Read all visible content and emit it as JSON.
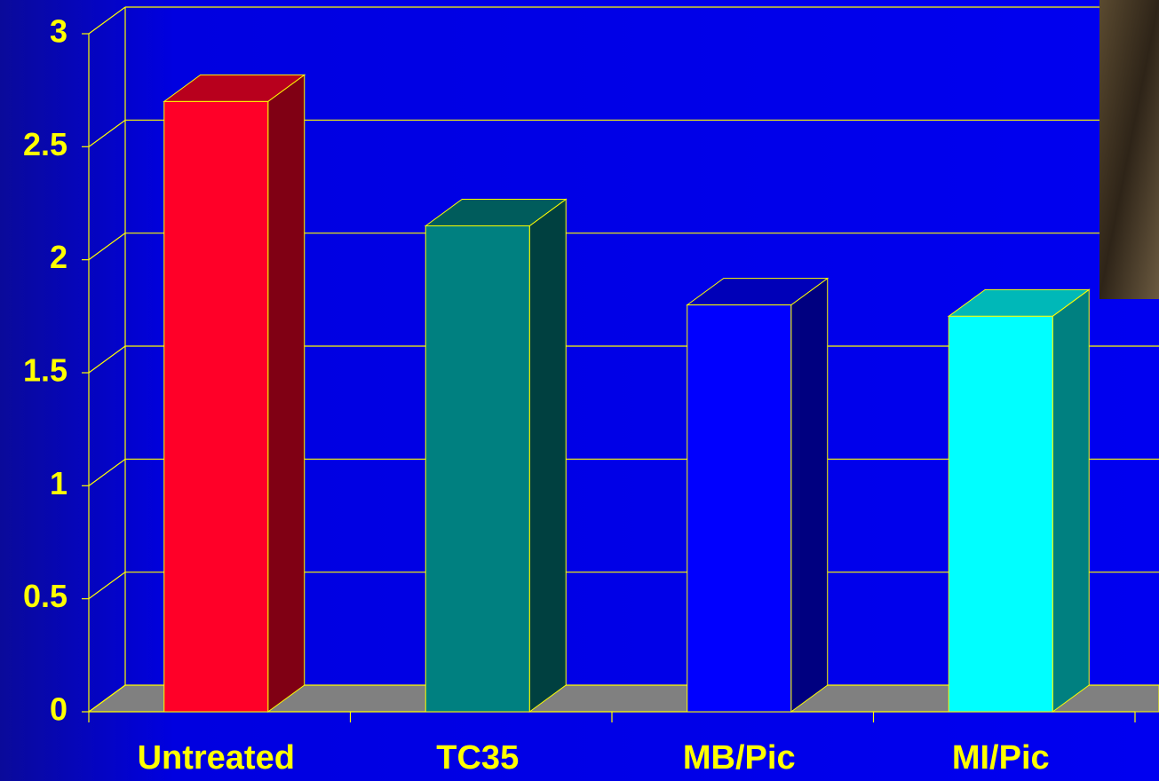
{
  "chart_data": {
    "type": "bar3d",
    "categories": [
      "Untreated",
      "TC35",
      "MB/Pic",
      "MI/Pic"
    ],
    "values": [
      2.7,
      2.15,
      1.8,
      1.75
    ],
    "colors": [
      "#ff0028",
      "#008080",
      "#0000ff",
      "#00ffff"
    ],
    "ylim": [
      0,
      3
    ],
    "yticks": [
      0,
      0.5,
      1,
      1.5,
      2,
      2.5,
      3
    ],
    "grid": true
  }
}
